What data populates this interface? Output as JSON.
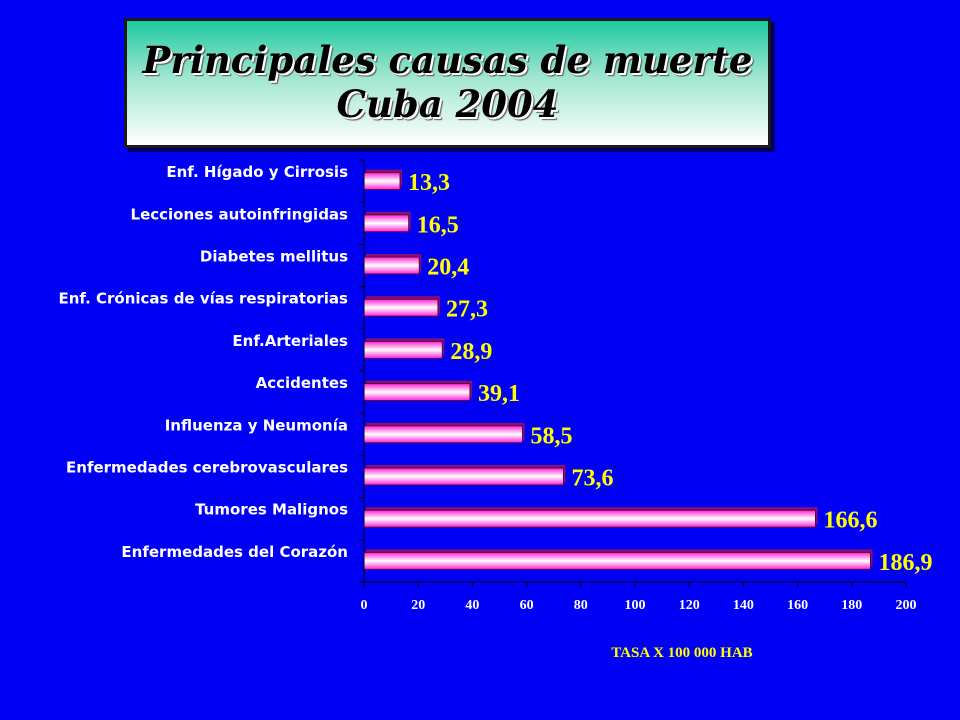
{
  "title": {
    "line1": "Principales causas de muerte",
    "line2": "Cuba 2004"
  },
  "colors": {
    "background": "#0000f5",
    "bar_dark": "#ff1fd6",
    "bar_light": "#ffffff",
    "value_label": "#ffff00",
    "axis_label": "#ffff00",
    "category_label": "#ffffff"
  },
  "chart_data": {
    "type": "bar",
    "orientation": "horizontal",
    "title": "Principales causas de muerte Cuba 2004",
    "xlabel": "TASA X 100 000 HAB",
    "ylabel": "",
    "xlim": [
      0,
      200
    ],
    "x_ticks": [
      0,
      20,
      40,
      60,
      80,
      100,
      120,
      140,
      160,
      180,
      200
    ],
    "grid": false,
    "categories": [
      "Enf. Hígado y Cirrosis",
      "Lecciones autoinfringidas",
      "Diabetes mellitus",
      "Enf. Crónicas de vías respiratorias",
      "Enf.Arteriales",
      "Accidentes",
      "Influenza y Neumonía",
      "Enfermedades cerebrovasculares",
      "Tumores Malignos",
      "Enfermedades del Corazón"
    ],
    "values": [
      13.3,
      16.5,
      20.4,
      27.3,
      28.9,
      39.1,
      58.5,
      73.6,
      166.6,
      186.9
    ],
    "value_labels": [
      "13,3",
      "16,5",
      "20,4",
      "27,3",
      "28,9",
      "39,1",
      "58,5",
      "73,6",
      "166,6",
      "186,9"
    ]
  }
}
